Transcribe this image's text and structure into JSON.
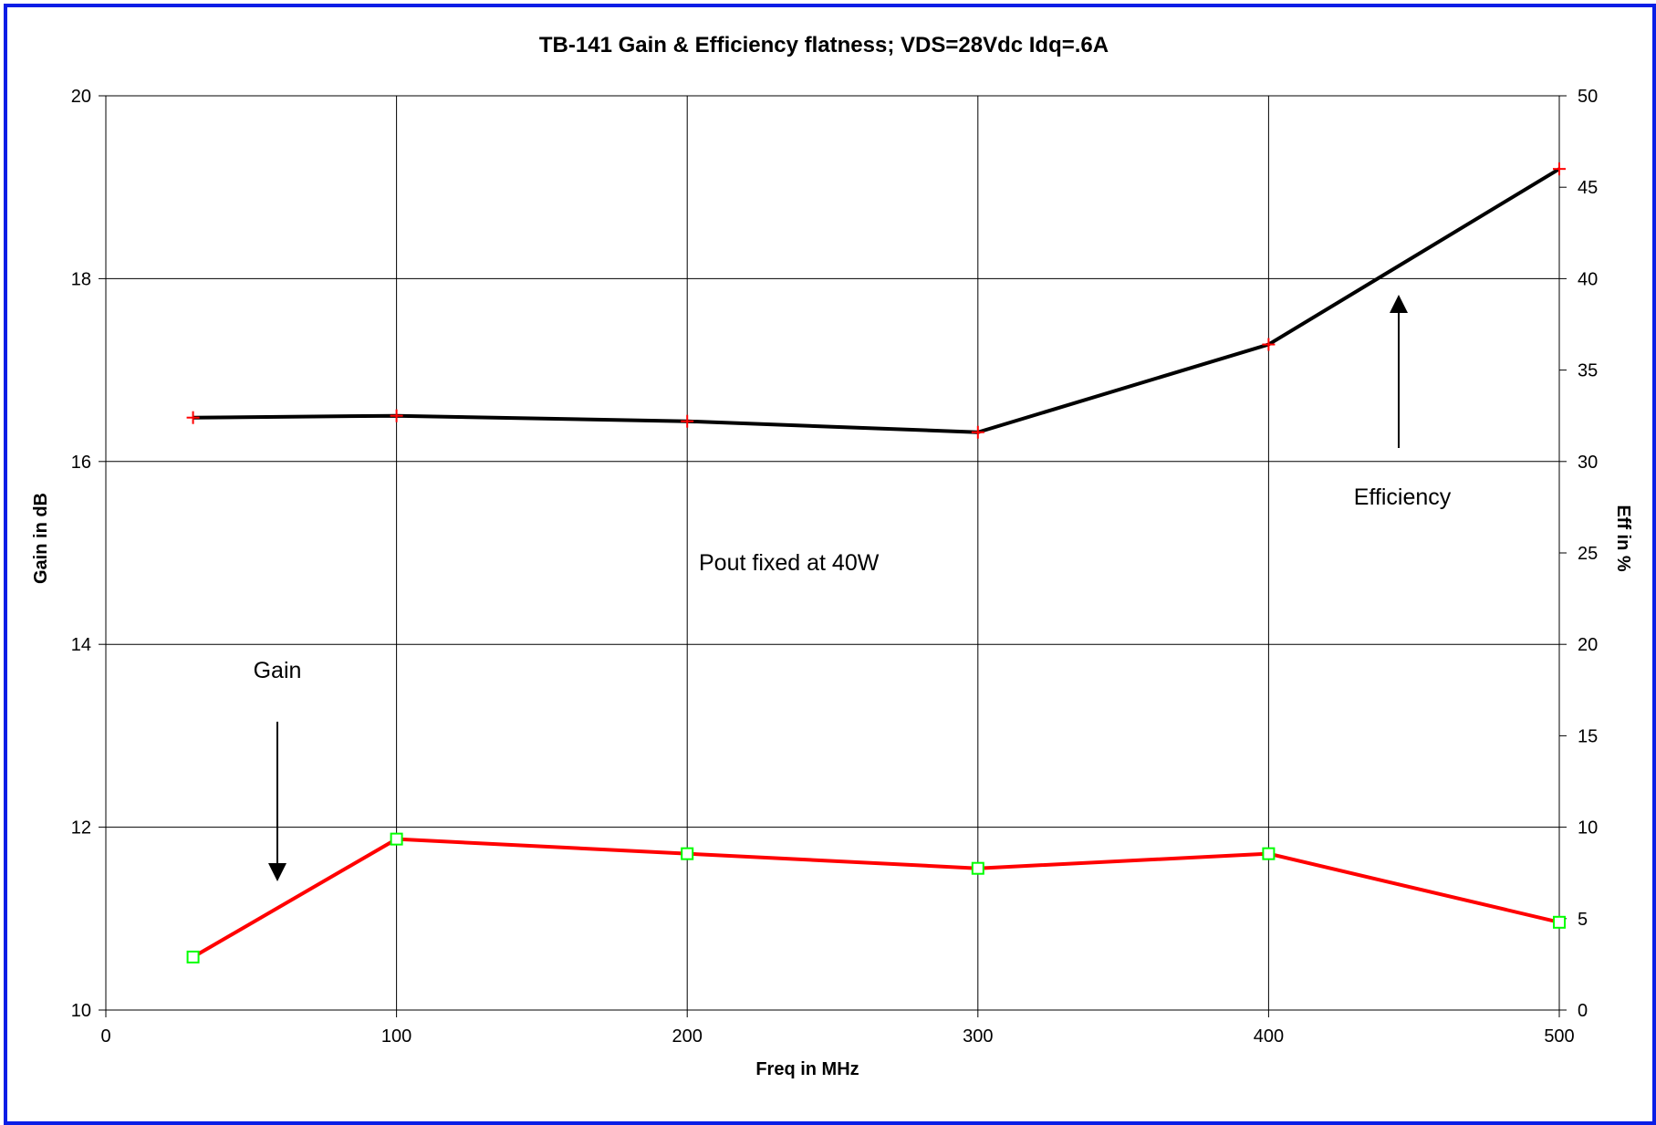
{
  "chart_data": {
    "type": "line",
    "title": "TB-141 Gain & Efficiency flatness; VDS=28Vdc Idq=.6A",
    "xlabel": "Freq in MHz",
    "ylabel": "Gain in dB",
    "y2label": "Eff in %",
    "xlim": [
      0,
      500
    ],
    "ylim": [
      10,
      20
    ],
    "y2lim": [
      0,
      50
    ],
    "xticks": [
      "0",
      "100",
      "200",
      "300",
      "400",
      "500"
    ],
    "yticks": [
      "10",
      "12",
      "14",
      "16",
      "18",
      "20"
    ],
    "y2ticks": [
      "0",
      "5",
      "10",
      "15",
      "20",
      "25",
      "30",
      "35",
      "40",
      "45",
      "50"
    ],
    "grid": true,
    "x": [
      30,
      100,
      200,
      300,
      400,
      500
    ],
    "series": [
      {
        "key": "gain",
        "axis": "left",
        "values": [
          10.58,
          11.87,
          11.71,
          11.55,
          11.71,
          10.96
        ],
        "line_color": "#ff0000",
        "marker": "square",
        "marker_color": "#00ff00"
      },
      {
        "key": "efficiency",
        "axis": "right",
        "values": [
          32.4,
          32.5,
          32.2,
          31.6,
          36.4,
          46.0
        ],
        "line_color": "#000000",
        "marker": "plus",
        "marker_color": "#ff0000"
      }
    ],
    "annotations": [
      {
        "key": "gain",
        "text": "Gain"
      },
      {
        "key": "efficiency",
        "text": "Efficiency"
      },
      {
        "key": "note",
        "text": "Pout fixed at 40W"
      }
    ],
    "border_color": "#0a1ee6"
  }
}
